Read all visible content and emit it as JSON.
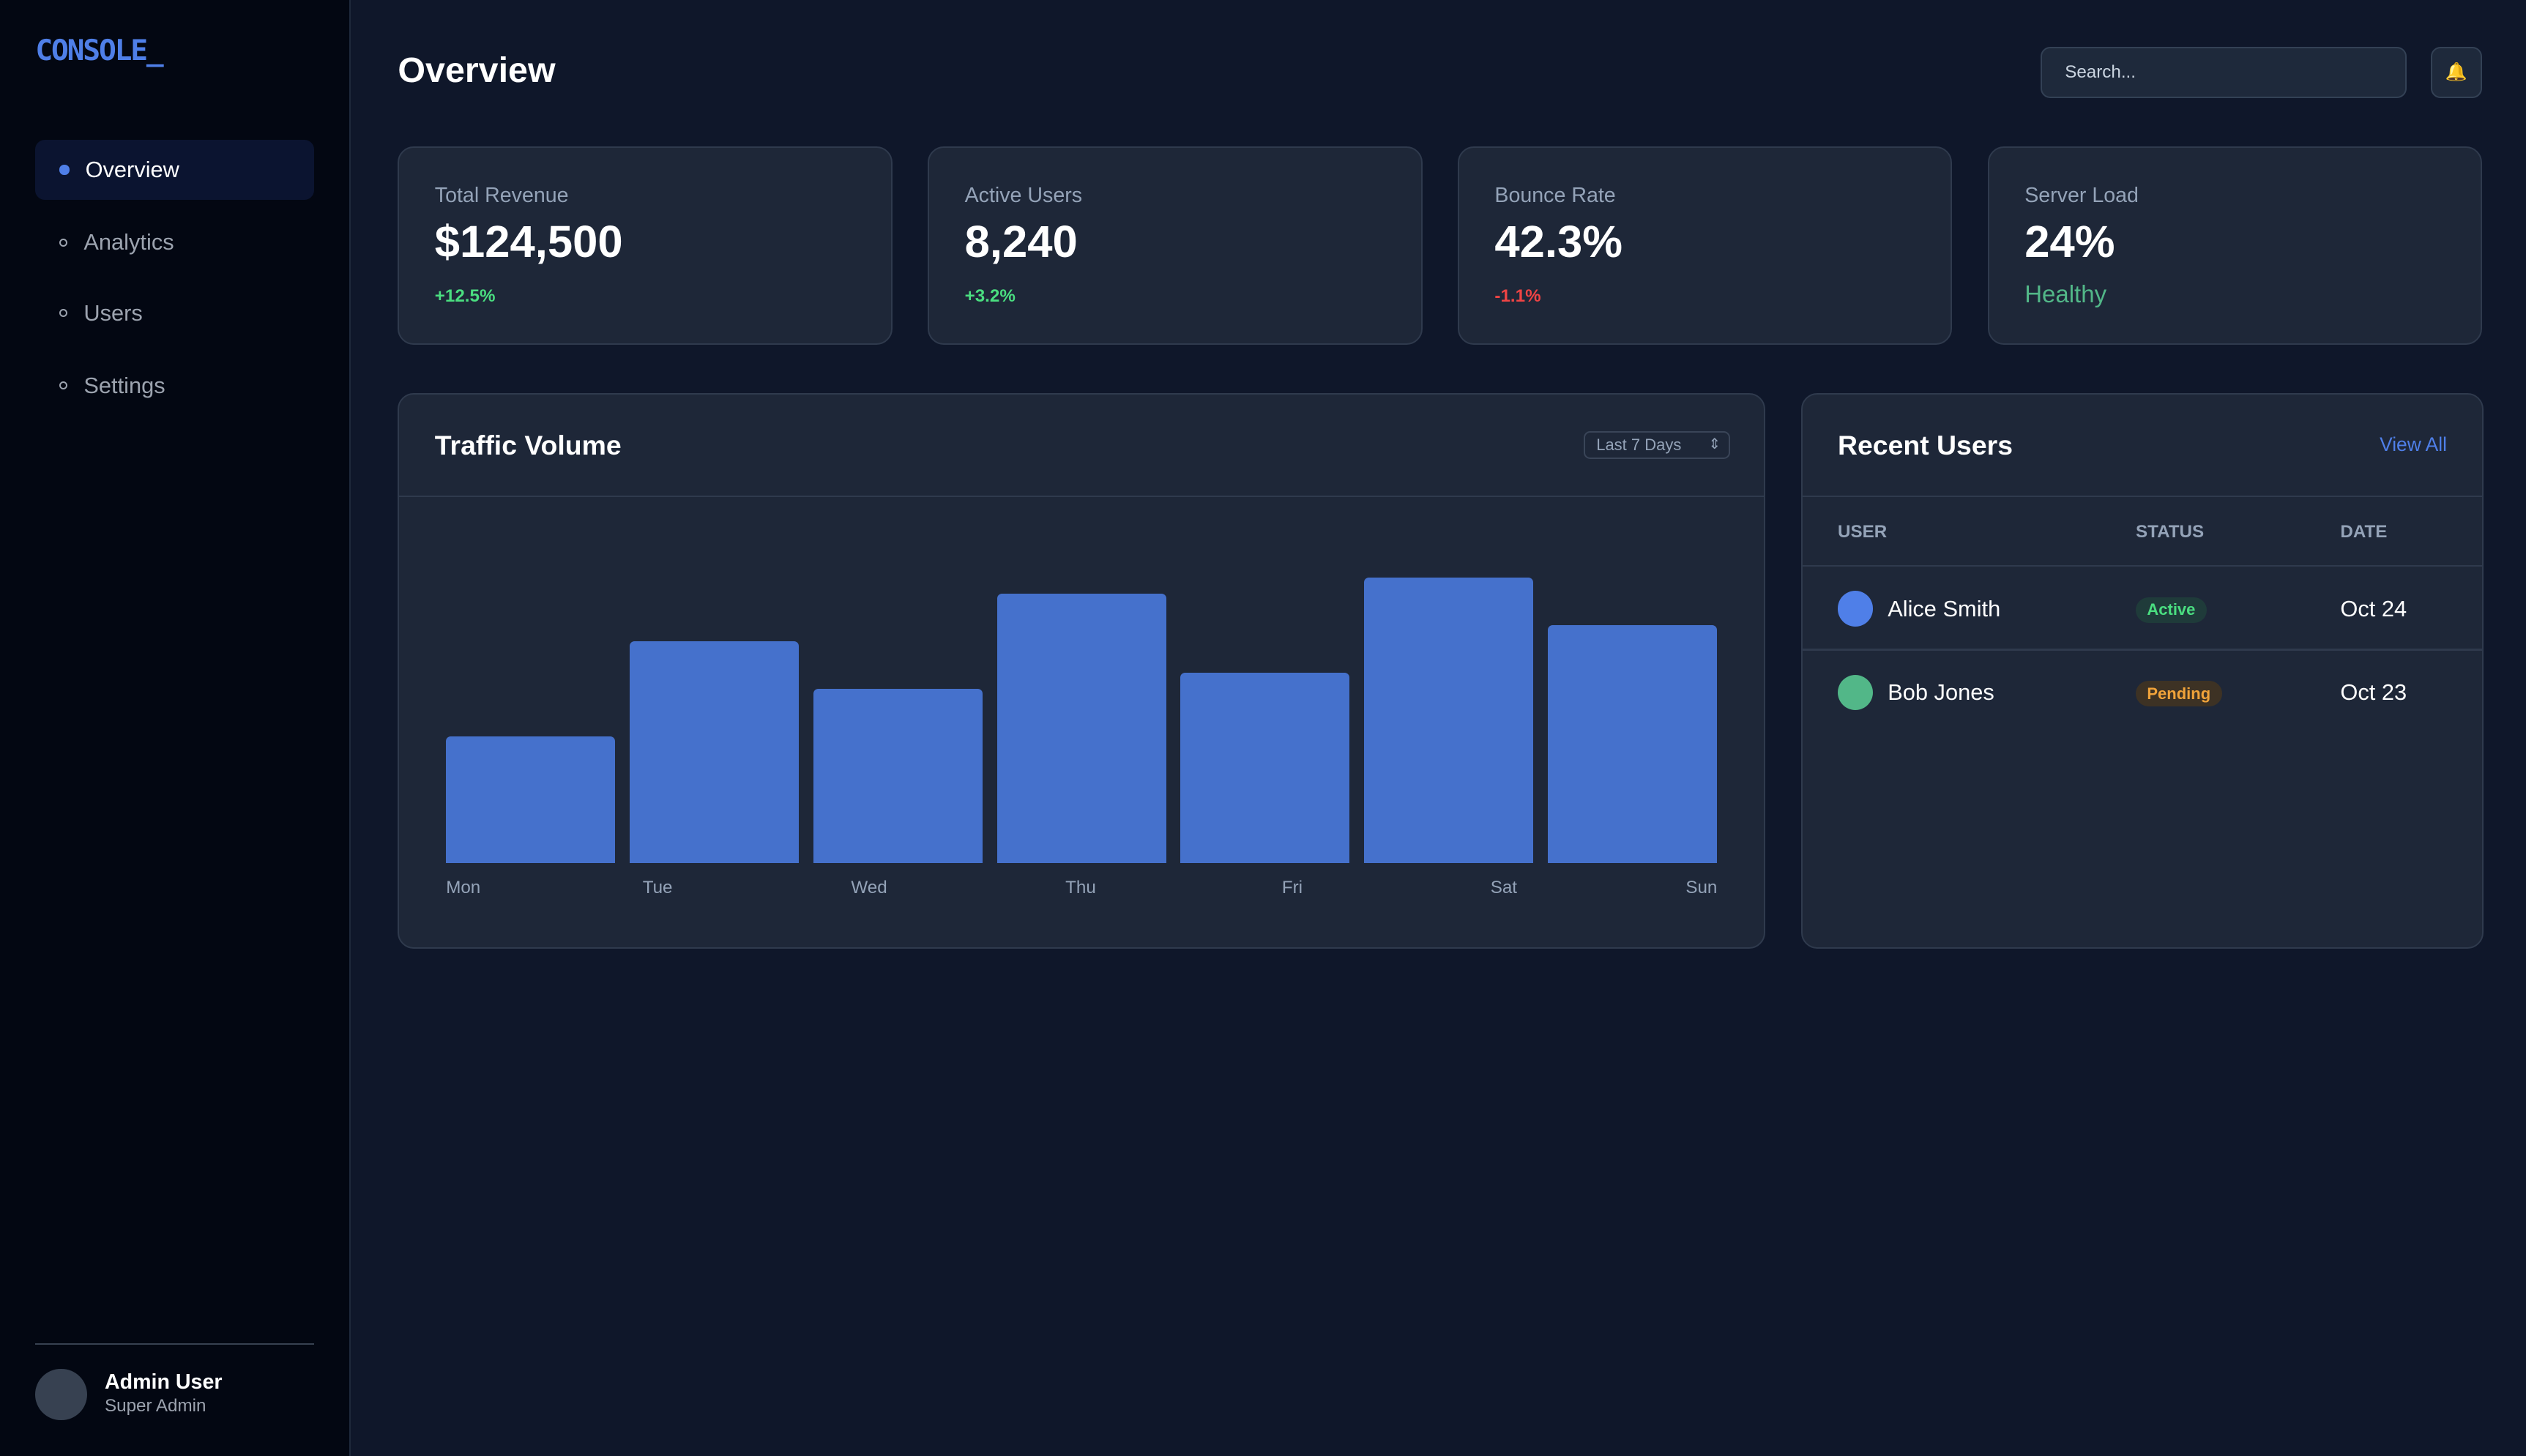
{
  "sidebar": {
    "logo": "CONSOLE_",
    "items": [
      {
        "label": "Overview",
        "active": true
      },
      {
        "label": "Analytics",
        "active": false
      },
      {
        "label": "Users",
        "active": false
      },
      {
        "label": "Settings",
        "active": false
      }
    ],
    "user": {
      "name": "Admin User",
      "role": "Super Admin"
    }
  },
  "header": {
    "title": "Overview",
    "search_placeholder": "Search...",
    "bell_icon": "🔔"
  },
  "stats": [
    {
      "label": "Total Revenue",
      "value": "$124,500",
      "change": "+12.5%",
      "color": "#4ade80"
    },
    {
      "label": "Active Users",
      "value": "8,240",
      "change": "+3.2%",
      "color": "#4ade80"
    },
    {
      "label": "Bounce Rate",
      "value": "42.3%",
      "change": "-1.1%",
      "color": "#ef4444"
    },
    {
      "label": "Server Load",
      "value": "24%",
      "change": "Healthy",
      "color": "#52b788"
    }
  ],
  "traffic": {
    "title": "Traffic Volume",
    "range": "Last 7 Days"
  },
  "chart_data": {
    "type": "bar",
    "categories": [
      "Mon",
      "Tue",
      "Wed",
      "Thu",
      "Fri",
      "Sat",
      "Sun"
    ],
    "values": [
      40,
      70,
      55,
      85,
      60,
      90,
      75
    ],
    "ylim": [
      0,
      100
    ],
    "grid": false,
    "color": "#4571cc"
  },
  "recent_users": {
    "title": "Recent Users",
    "view_all": "View All",
    "columns": [
      "USER",
      "STATUS",
      "DATE"
    ],
    "rows": [
      {
        "name": "Alice Smith",
        "status": "Active",
        "date": "Oct 24",
        "avatar_color": "#4f7fe8"
      },
      {
        "name": "Bob Jones",
        "status": "Pending",
        "date": "Oct 23",
        "avatar_color": "#52b788"
      }
    ]
  }
}
